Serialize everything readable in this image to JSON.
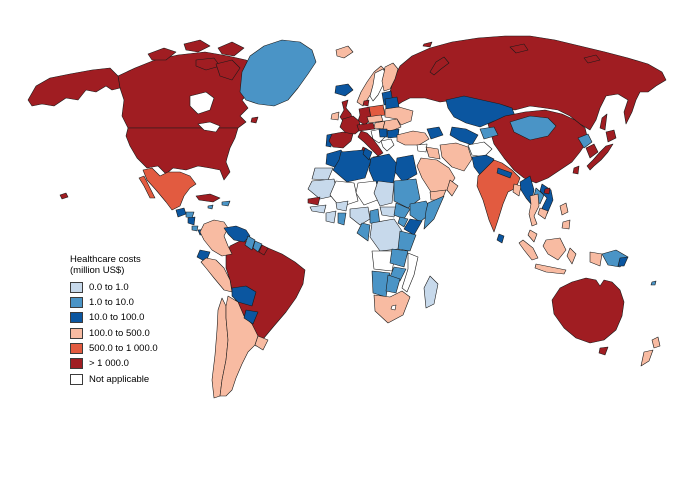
{
  "legend": {
    "title_line1": "Healthcare costs",
    "title_line2": "(million US$)",
    "items": [
      {
        "key": "cat1",
        "label": "0.0 to 1.0",
        "color": "#C7D9EB"
      },
      {
        "key": "cat2",
        "label": "1.0 to 10.0",
        "color": "#4A94C6"
      },
      {
        "key": "cat3",
        "label": "10.0 to 100.0",
        "color": "#0B56A0"
      },
      {
        "key": "cat4",
        "label": "100.0 to 500.0",
        "color": "#F8BBA2"
      },
      {
        "key": "cat5",
        "label": "500.0 to 1 000.0",
        "color": "#E25B40"
      },
      {
        "key": "cat6",
        "label": "> 1 000.0",
        "color": "#A01D22"
      },
      {
        "key": "na",
        "label": "Not applicable",
        "color": "#FFFFFF"
      }
    ]
  },
  "map": {
    "ocean_color": "#FFFFFF",
    "border_color": "#1A1A1A",
    "regions": {
      "alaska": "cat6",
      "canada": "cat6",
      "hudson-bay": "na",
      "great-lakes": "na",
      "arctic-island-1": "cat6",
      "arctic-island-2": "cat6",
      "arctic-island-3": "cat6",
      "arctic-island-4": "cat6",
      "baffin-island": "cat6",
      "newfoundland": "cat6",
      "greenland": "cat2",
      "iceland": "cat3",
      "usa": "cat6",
      "hawaii": "cat6",
      "mexico": "cat5",
      "baja-california": "cat5",
      "guatemala": "cat3",
      "honduras": "cat2",
      "nicaragua": "cat3",
      "costa-rica": "cat2",
      "panama": "cat3",
      "cuba": "cat6",
      "jamaica": "cat2",
      "hispaniola": "cat2",
      "colombia": "cat4",
      "venezuela": "cat3",
      "guyana": "cat2",
      "suriname": "cat2",
      "french-guiana": "cat6",
      "ecuador": "cat3",
      "peru": "cat4",
      "brazil": "cat6",
      "bolivia": "cat3",
      "paraguay": "cat3",
      "uruguay": "cat4",
      "argentina": "cat4",
      "chile": "cat4",
      "ireland": "cat4",
      "uk": "cat6",
      "portugal": "cat3",
      "spain": "cat6",
      "france": "cat6",
      "germany": "cat6",
      "denmark": "cat6",
      "norway": "cat4",
      "sweden": "na",
      "finland": "cat4",
      "baltics": "cat3",
      "poland": "cat5",
      "czech-slovakia": "cat4",
      "switzerland-austria": "cat6",
      "hungary": "cat4",
      "romania": "cat4",
      "bulgaria": "cat3",
      "serbia": "cat3",
      "croatia-bosnia": "na",
      "greece": "na",
      "italy": "cat6",
      "sicily": "cat6",
      "sardinia": "cat6",
      "belarus": "cat3",
      "ukraine": "cat4",
      "russia": "cat6",
      "sakhalin": "cat6",
      "svalbard": "cat4",
      "novaya-zemlya": "cat6",
      "franz-josef-land": "cat6",
      "severnaya-zemlya": "cat6",
      "new-siberian-islands": "cat6",
      "turkey": "cat4",
      "caucasus": "cat3",
      "syria": "na",
      "iraq": "cat4",
      "iran": "cat4",
      "saudi-arabia": "cat4",
      "yemen": "cat4",
      "oman": "cat4",
      "afghanistan": "na",
      "pakistan": "cat3",
      "kazakhstan": "cat3",
      "uzbekistan-turkmenistan": "cat3",
      "kyrgyzstan-tajikistan": "cat2",
      "india": "cat5",
      "nepal": "cat3",
      "bangladesh": "cat4",
      "sri-lanka": "cat3",
      "china": "cat6",
      "mongolia": "cat2",
      "north-korea": "cat2",
      "south-korea": "cat6",
      "japan-hokkaido": "cat6",
      "japan-honshu": "cat6",
      "taiwan": "cat6",
      "hainan": "cat6",
      "myanmar": "cat3",
      "thailand": "cat4",
      "laos": "cat2",
      "vietnam": "cat3",
      "cambodia": "cat4",
      "malaysia": "cat4",
      "sumatra": "cat4",
      "borneo": "cat4",
      "java": "cat4",
      "sulawesi": "cat4",
      "west-papua": "cat4",
      "papua-new-guinea": "cat2",
      "png-east": "cat3",
      "philippines-luzon": "cat4",
      "philippines-mindanao": "cat4",
      "australia": "cat6",
      "tasmania": "cat6",
      "new-zealand-north": "cat4",
      "new-zealand-south": "cat4",
      "fiji": "cat2",
      "morocco": "cat3",
      "western-sahara": "cat1",
      "algeria": "cat3",
      "tunisia": "cat3",
      "libya": "cat3",
      "egypt": "cat3",
      "mauritania": "cat1",
      "mali": "na",
      "niger": "na",
      "chad": "cat1",
      "sudan": "cat2",
      "ethiopia": "cat2",
      "somalia": "cat2",
      "senegal": "cat6",
      "guinea": "cat1",
      "ivory-coast": "cat1",
      "burkina-faso": "cat1",
      "ghana": "cat2",
      "nigeria": "cat1",
      "cameroon": "cat2",
      "central-african-republic": "cat1",
      "south-sudan": "cat2",
      "uganda": "cat2",
      "kenya": "cat3",
      "drc": "cat1",
      "gabon-congo": "cat2",
      "tanzania": "cat2",
      "angola": "na",
      "zambia": "cat2",
      "mozambique": "na",
      "zimbabwe": "cat2",
      "namibia": "cat2",
      "botswana": "cat2",
      "south-africa": "cat4",
      "lesotho": "na",
      "madagascar": "cat1"
    }
  }
}
